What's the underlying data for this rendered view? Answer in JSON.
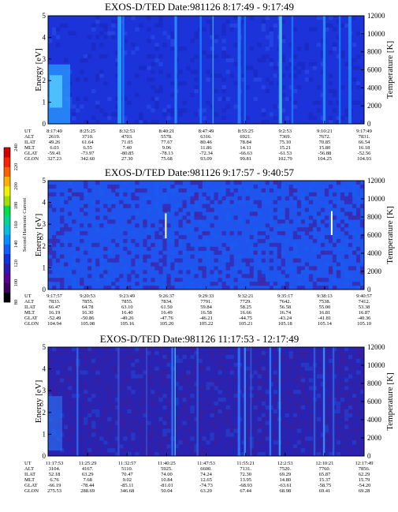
{
  "chart_data": [
    {
      "type": "heatmap",
      "title": "EXOS-D/TED   Date:981126   8:17:49 - 9:17:49",
      "ylabel": "Energy [eV]",
      "y2label": "Temperature [K]",
      "ylim": [
        0,
        5
      ],
      "yticks": [
        "0",
        "1",
        "2",
        "3",
        "4",
        "5"
      ],
      "y2lim": [
        0,
        12000
      ],
      "y2ticks": [
        "0",
        "2000",
        "4000",
        "6000",
        "8000",
        "10000",
        "12000"
      ],
      "rows": {
        "labels": [
          "UT",
          "ALT",
          "ILAT",
          "MLT",
          "GLAT",
          "GLON"
        ],
        "values": [
          [
            "8:17:49",
            "8:25:25",
            "8:32:53",
            "8:40:21",
            "8:47:49",
            "8:55:25",
            "9:2:53",
            "9:10:21",
            "9:17:49"
          ],
          [
            "2619.",
            "3710.",
            "4703.",
            "5578.",
            "6316.",
            "6921.",
            "7369.",
            "7672.",
            "7831."
          ],
          [
            "49.26",
            "61.64",
            "71.05",
            "77.67",
            "80.46",
            "78.84",
            "75.10",
            "70.85",
            "66.54"
          ],
          [
            "6.03",
            "6.55",
            "7.40",
            "9.06",
            "11.86",
            "14.11",
            "15.21",
            "15.80",
            "16.18"
          ],
          [
            "-59.41",
            "-73.97",
            "-80.85",
            "-78.13",
            "-72.34",
            "-66.63",
            "-61.53",
            "-56.88",
            "-52.56"
          ],
          [
            "327.23",
            "342.60",
            "27.30",
            "75.68",
            "93.09",
            "99.81",
            "102.79",
            "104.25",
            "104.93"
          ]
        ]
      }
    },
    {
      "type": "heatmap",
      "title": "EXOS-D/TED   Date:981126   9:17:57 - 9:40:57",
      "ylabel": "Energy [eV]",
      "y2label": "Temperature [K]",
      "ylim": [
        0,
        5
      ],
      "yticks": [
        "0",
        "1",
        "2",
        "3",
        "4",
        "5"
      ],
      "y2lim": [
        0,
        12000
      ],
      "y2ticks": [
        "0",
        "2000",
        "4000",
        "6000",
        "8000",
        "10000",
        "12000"
      ],
      "rows": {
        "labels": [
          "UT",
          "ALT",
          "ILAT",
          "MLT",
          "GLAT",
          "GLON"
        ],
        "values": [
          [
            "9:17:57",
            "9:20:53",
            "9:23:49",
            "9:26:37",
            "9:29:33",
            "9:32:21",
            "9:35:17",
            "9:38:13",
            "9:40:57"
          ],
          [
            "7833.",
            "7855.",
            "7855.",
            "7834.",
            "7791.",
            "7729.",
            "7642.",
            "7538.",
            "7412."
          ],
          [
            "66.47",
            "64.78",
            "63.10",
            "61.50",
            "59.84",
            "58.25",
            "56.58",
            "55.00",
            "53.38"
          ],
          [
            "16.19",
            "16.30",
            "16.40",
            "16.49",
            "16.58",
            "16.66",
            "16.74",
            "16.81",
            "16.87"
          ],
          [
            "-52.49",
            "-50.86",
            "-49.26",
            "-47.76",
            "-46.21",
            "-44.75",
            "-43.24",
            "-41.81",
            "-40.36"
          ],
          [
            "104.94",
            "105.08",
            "105.16",
            "105.20",
            "105.22",
            "105.21",
            "105.18",
            "105.14",
            "105.10"
          ]
        ]
      }
    },
    {
      "type": "heatmap",
      "title": "EXOS-D/TED   Date:981126   11:17:53 - 12:17:49",
      "ylabel": "Energy [eV]",
      "y2label": "Temperature [K]",
      "ylim": [
        0,
        5
      ],
      "yticks": [
        "0",
        "1",
        "2",
        "3",
        "4",
        "5"
      ],
      "y2lim": [
        0,
        12000
      ],
      "y2ticks": [
        "0",
        "2000",
        "4000",
        "6000",
        "8000",
        "10000",
        "12000"
      ],
      "rows": {
        "labels": [
          "UT",
          "ALT",
          "ILAT",
          "MLT",
          "GLAT",
          "GLON"
        ],
        "values": [
          [
            "11:17:53",
            "11:25:29",
            "11:32:57",
            "11:40:25",
            "11:47:53",
            "11:55:21",
            "12:2:53",
            "12:10:21",
            "12:17:49"
          ],
          [
            "3104.",
            "4167.",
            "5110.",
            "5925.",
            "6600.",
            "7131.",
            "7520.",
            "7760.",
            "7856."
          ],
          [
            "52.18",
            "63.29",
            "70.47",
            "74.00",
            "74.24",
            "72.30",
            "69.29",
            "65.87",
            "62.29"
          ],
          [
            "6.76",
            "7.68",
            "9.02",
            "10.84",
            "12.65",
            "13.95",
            "14.80",
            "15.37",
            "15.79"
          ],
          [
            "-66.19",
            "-78.44",
            "-85.11",
            "-81.01",
            "-74.73",
            "-68.93",
            "-63.61",
            "-58.75",
            "-54.20"
          ],
          [
            "275.53",
            "288.69",
            "346.68",
            "50.04",
            "63.29",
            "67.44",
            "68.98",
            "69.41",
            "69.28"
          ]
        ]
      }
    }
  ],
  "colorbar": {
    "label": "Second Harmonic Current",
    "ticks": [
      "80",
      "100",
      "120",
      "140",
      "160",
      "180",
      "200",
      "220",
      "240"
    ],
    "colors": [
      "#000000",
      "#3a0060",
      "#5a0090",
      "#2a1ab0",
      "#1030e0",
      "#1060ff",
      "#0090ff",
      "#00c0e0",
      "#00d890",
      "#00e040",
      "#a0e000",
      "#f0f000",
      "#ffb000",
      "#ff6000",
      "#ff2000",
      "#d00000"
    ]
  }
}
